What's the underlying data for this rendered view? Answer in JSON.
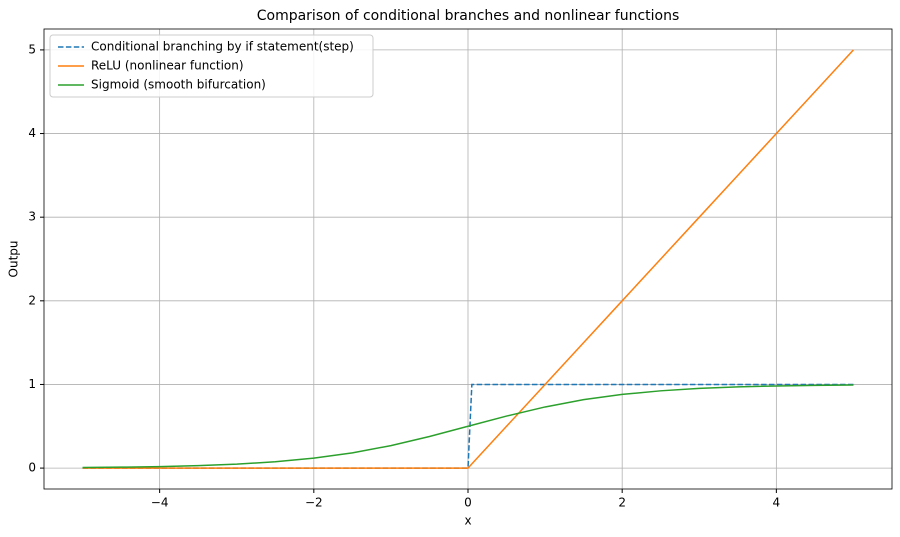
{
  "chart_data": {
    "type": "line",
    "title": "Comparison of conditional branches and nonlinear functions",
    "x_label": "x",
    "y_label": "Outpu",
    "x": [
      -5,
      -4.5,
      -4,
      -3.5,
      -3,
      -2.5,
      -2,
      -1.5,
      -1,
      -0.5,
      0,
      0.05,
      0.5,
      1,
      1.5,
      2,
      2.5,
      3,
      3.5,
      4,
      4.5,
      5
    ],
    "series": [
      {
        "name": "Conditional branching by if statement(step)",
        "color": "#1f77b4",
        "linestyle": "dashed",
        "values": [
          0,
          0,
          0,
          0,
          0,
          0,
          0,
          0,
          0,
          0,
          0,
          1,
          1,
          1,
          1,
          1,
          1,
          1,
          1,
          1,
          1,
          1
        ]
      },
      {
        "name": "ReLU (nonlinear function)",
        "color": "#ff7f0e",
        "linestyle": "solid",
        "values": [
          0,
          0,
          0,
          0,
          0,
          0,
          0,
          0,
          0,
          0,
          0,
          0.05,
          0.5,
          1,
          1.5,
          2,
          2.5,
          3,
          3.5,
          4,
          4.5,
          5
        ]
      },
      {
        "name": "Sigmoid (smooth bifurcation)",
        "color": "#2ca02c",
        "linestyle": "solid",
        "values": [
          0.007,
          0.011,
          0.018,
          0.029,
          0.047,
          0.076,
          0.119,
          0.182,
          0.269,
          0.378,
          0.5,
          0.512,
          0.622,
          0.731,
          0.818,
          0.881,
          0.924,
          0.953,
          0.971,
          0.982,
          0.989,
          0.993
        ]
      }
    ],
    "xlim": [
      -5.5,
      5.5
    ],
    "xticks": [
      {
        "value": -4,
        "label": "−4"
      },
      {
        "value": -2,
        "label": "−2"
      },
      0,
      2,
      4
    ],
    "ylim": [
      -0.25,
      5.25
    ],
    "yticks": [
      0,
      1,
      2,
      3,
      4,
      5
    ],
    "grid": true,
    "legend": "upper-left"
  }
}
